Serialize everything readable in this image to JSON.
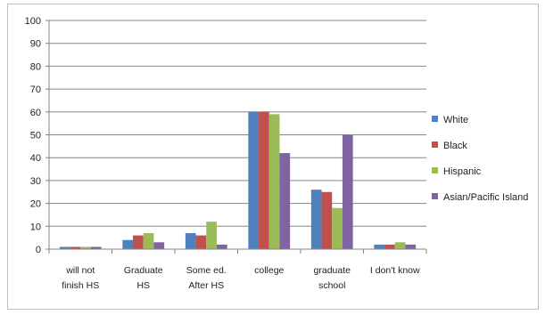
{
  "chart_data": {
    "type": "bar",
    "categories": [
      [
        "will not",
        "finish HS"
      ],
      [
        "Graduate",
        "HS"
      ],
      [
        "Some ed.",
        "After HS"
      ],
      [
        "college"
      ],
      [
        "graduate",
        "school"
      ],
      [
        "I don't know"
      ]
    ],
    "series": [
      {
        "name": "White",
        "color": "#4f81bd",
        "values": [
          1,
          4,
          7,
          60,
          26,
          2
        ]
      },
      {
        "name": "Black",
        "color": "#c0504d",
        "values": [
          1,
          6,
          6,
          60,
          25,
          2
        ]
      },
      {
        "name": "Hispanic",
        "color": "#9bbb59",
        "values": [
          1,
          7,
          12,
          59,
          18,
          3
        ]
      },
      {
        "name": "Asian/Pacific Island",
        "color": "#8064a2",
        "values": [
          1,
          3,
          2,
          42,
          50,
          2
        ]
      }
    ],
    "yticks": [
      0,
      10,
      20,
      30,
      40,
      50,
      60,
      70,
      80,
      90,
      100
    ],
    "ylim": [
      0,
      100
    ],
    "grid": true,
    "legend": "right"
  }
}
